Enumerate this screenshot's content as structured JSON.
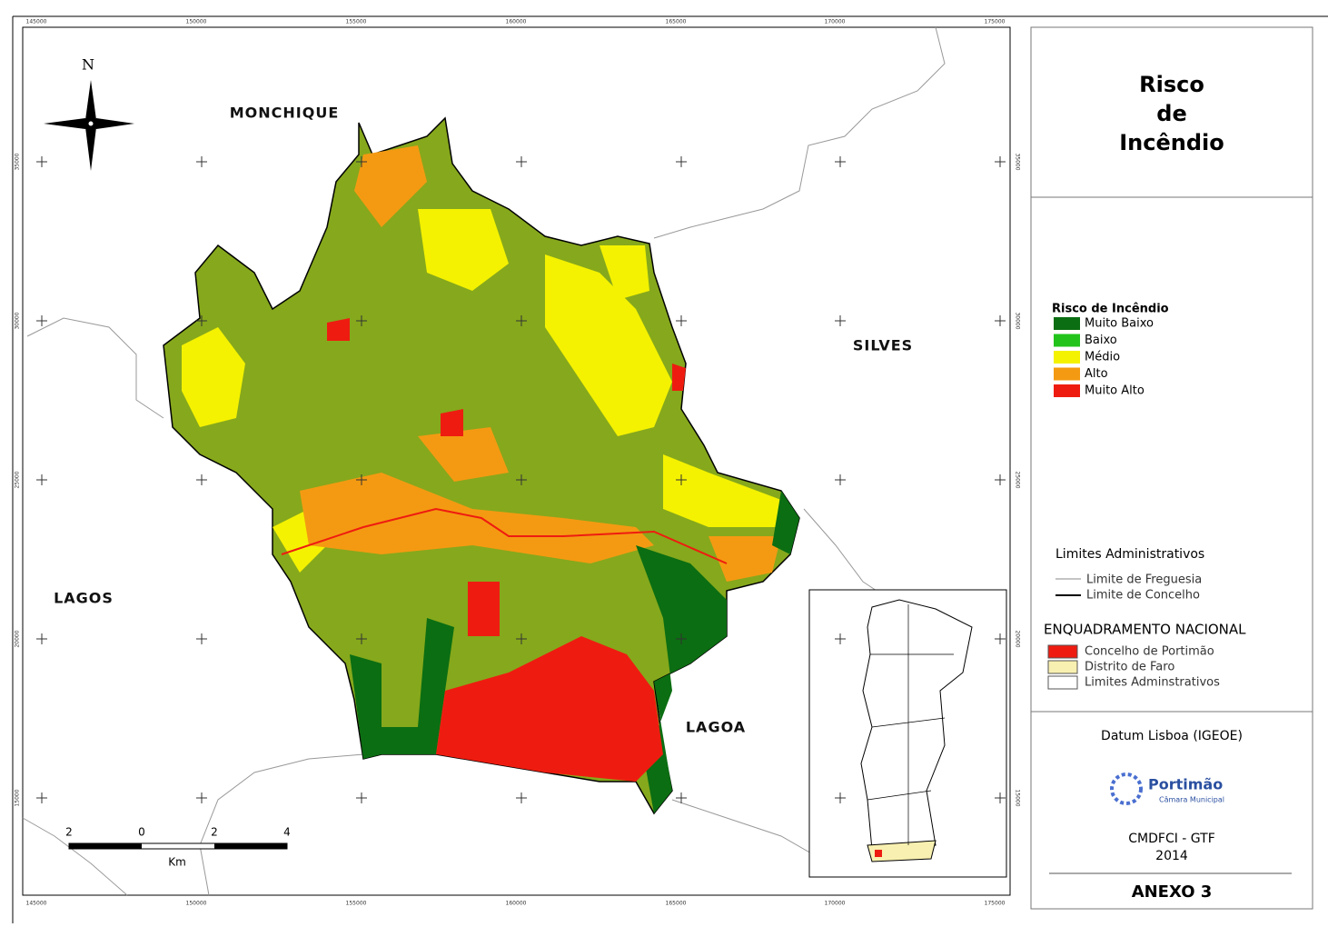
{
  "map": {
    "x_labels": [
      "145000",
      "150000",
      "155000",
      "160000",
      "165000",
      "170000",
      "175000"
    ],
    "y_labels": [
      "35000",
      "30000",
      "25000",
      "20000",
      "15000"
    ],
    "places": [
      "MONCHIQUE",
      "SILVES",
      "LAGOS",
      "LAGOA"
    ],
    "north": "N",
    "scale": {
      "labels": [
        "2",
        "0",
        "2",
        "4"
      ],
      "unit": "Km"
    }
  },
  "panel": {
    "title": [
      "Risco",
      "de",
      "Incêndio"
    ],
    "legend": {
      "title": "Risco de Incêndio",
      "items": [
        {
          "label": "Muito Baixo",
          "color": "#0b6e12"
        },
        {
          "label": "Baixo",
          "color": "#22c41c"
        },
        {
          "label": "Médio",
          "color": "#f4f200"
        },
        {
          "label": "Alto",
          "color": "#f49a12"
        },
        {
          "label": "Muito Alto",
          "color": "#ee1c10"
        }
      ]
    },
    "limits": {
      "title": "Limites Administrativos",
      "items": [
        "Limite de Freguesia",
        "Limite de Concelho"
      ]
    },
    "national": {
      "title": "ENQUADRAMENTO NACIONAL",
      "items": [
        {
          "label": "Concelho de Portimão",
          "color": "#ee1c10"
        },
        {
          "label": "Distrito de Faro",
          "color": "#f8f0b0"
        },
        {
          "label": "Limites Adminstrativos",
          "color": "#ffffff"
        }
      ]
    },
    "datum": "Datum Lisboa (IGEOE)",
    "logo": {
      "name": "Portimão",
      "subtitle": "Câmara Municipal"
    },
    "credit": [
      "CMDFCI - GTF",
      "2014"
    ],
    "annex": "ANEXO 3"
  }
}
